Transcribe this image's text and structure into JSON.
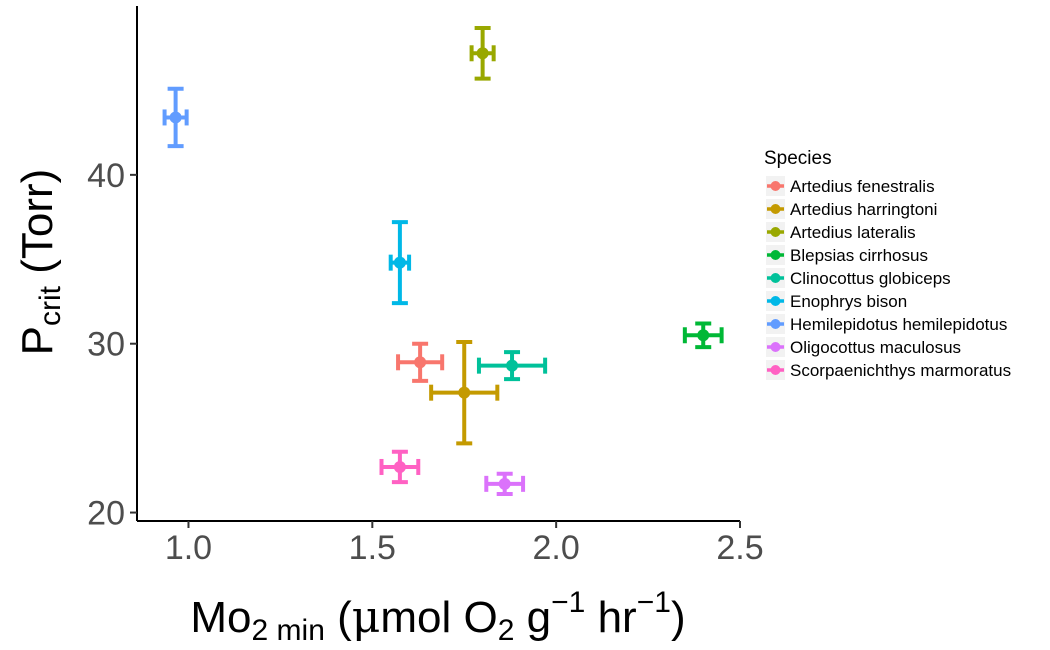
{
  "chart_data": {
    "type": "scatter",
    "xlabel": {
      "main": "Mo",
      "sub1": "2 min",
      "mid1": " (",
      "mu": "μ",
      "mid2": "mol O",
      "sub2": "2",
      "mid3": " g",
      "sup1": "−1",
      "mid4": " hr",
      "sup2": "−1",
      "end": ")"
    },
    "ylabel": {
      "main": "P",
      "sub": "crit",
      "rest": " (Torr)"
    },
    "xlim": [
      0.86,
      2.5
    ],
    "ylim": [
      19.5,
      50
    ],
    "x_ticks": [
      1.0,
      1.5,
      2.0,
      2.5
    ],
    "x_tick_labels": [
      "1.0",
      "1.5",
      "2.0",
      "2.5"
    ],
    "y_ticks": [
      20,
      30,
      40
    ],
    "y_tick_labels": [
      "20",
      "30",
      "40"
    ],
    "grid": false,
    "legend": {
      "title": "Species",
      "placement": "right"
    },
    "series": [
      {
        "name": "Artedius fenestralis",
        "color": "#F8766D",
        "x": 1.63,
        "y": 28.9,
        "x_err": 0.06,
        "y_err": 1.1
      },
      {
        "name": "Artedius harringtoni",
        "color": "#C49A00",
        "x": 1.75,
        "y": 27.1,
        "x_err": 0.09,
        "y_err": 3.0
      },
      {
        "name": "Artedius lateralis",
        "color": "#99A800",
        "x": 1.8,
        "y": 47.2,
        "x_err": 0.03,
        "y_err": 1.5
      },
      {
        "name": "Blepsias cirrhosus",
        "color": "#00B836",
        "x": 2.4,
        "y": 30.5,
        "x_err": 0.05,
        "y_err": 0.7
      },
      {
        "name": "Clinocottus globiceps",
        "color": "#00C19A",
        "x": 1.88,
        "y": 28.7,
        "x_err": 0.09,
        "y_err": 0.8
      },
      {
        "name": "Enophrys bison",
        "color": "#00B8E7",
        "x": 1.575,
        "y": 34.8,
        "x_err": 0.025,
        "y_err": 2.4
      },
      {
        "name": "Hemilepidotus hemilepidotus",
        "color": "#619CFF",
        "x": 0.965,
        "y": 43.4,
        "x_err": 0.03,
        "y_err": 1.7
      },
      {
        "name": "Oligocottus maculosus",
        "color": "#DB72FB",
        "x": 1.86,
        "y": 21.7,
        "x_err": 0.05,
        "y_err": 0.6
      },
      {
        "name": "Scorpaenichthys marmoratus",
        "color": "#FF61C3",
        "x": 1.575,
        "y": 22.7,
        "x_err": 0.05,
        "y_err": 0.9
      }
    ]
  }
}
